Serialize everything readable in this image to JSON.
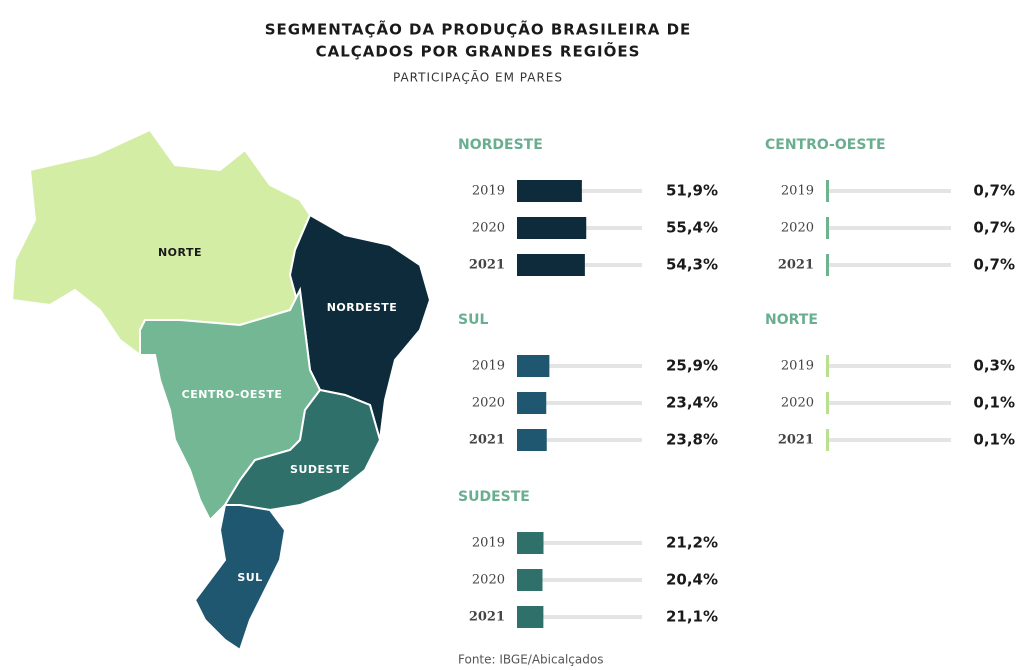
{
  "header": {
    "title": [
      "SEGMENTAÇÃO DA PRODUÇÃO BRASILEIRA DE",
      "CALÇADOS POR GRANDES REGIÕES"
    ],
    "subtitle": "PARTICIPAÇÃO EM PARES"
  },
  "map": {
    "regions": [
      "NORTE",
      "NORDESTE",
      "CENTRO-OESTE",
      "SUDESTE",
      "SUL"
    ]
  },
  "chart_data": [
    {
      "type": "bar",
      "title": "NORDESTE",
      "categories": [
        "2019",
        "2020",
        "2021"
      ],
      "values": [
        51.9,
        55.4,
        54.3
      ],
      "value_labels": [
        "51,9%",
        "55,4%",
        "54,3%"
      ],
      "color": "#0d2b3a",
      "xlim": [
        0,
        100
      ]
    },
    {
      "type": "bar",
      "title": "CENTRO-OESTE",
      "categories": [
        "2019",
        "2020",
        "2021"
      ],
      "values": [
        0.7,
        0.7,
        0.7
      ],
      "value_labels": [
        "0,7%",
        "0,7%",
        "0,7%"
      ],
      "color": "#6db38d",
      "xlim": [
        0,
        100
      ]
    },
    {
      "type": "bar",
      "title": "SUL",
      "categories": [
        "2019",
        "2020",
        "2021"
      ],
      "values": [
        25.9,
        23.4,
        23.8
      ],
      "value_labels": [
        "25,9%",
        "23,4%",
        "23,8%"
      ],
      "color": "#1f5670",
      "xlim": [
        0,
        100
      ]
    },
    {
      "type": "bar",
      "title": "NORTE",
      "categories": [
        "2019",
        "2020",
        "2021"
      ],
      "values": [
        0.3,
        0.1,
        0.1
      ],
      "value_labels": [
        "0,3%",
        "0,1%",
        "0,1%"
      ],
      "color": "#b9e08e",
      "xlim": [
        0,
        100
      ]
    },
    {
      "type": "bar",
      "title": "SUDESTE",
      "categories": [
        "2019",
        "2020",
        "2021"
      ],
      "values": [
        21.2,
        20.4,
        21.1
      ],
      "value_labels": [
        "21,2%",
        "20,4%",
        "21,1%"
      ],
      "color": "#2f706b",
      "xlim": [
        0,
        100
      ]
    }
  ],
  "source": "Fonte: IBGE/Abicalçados"
}
